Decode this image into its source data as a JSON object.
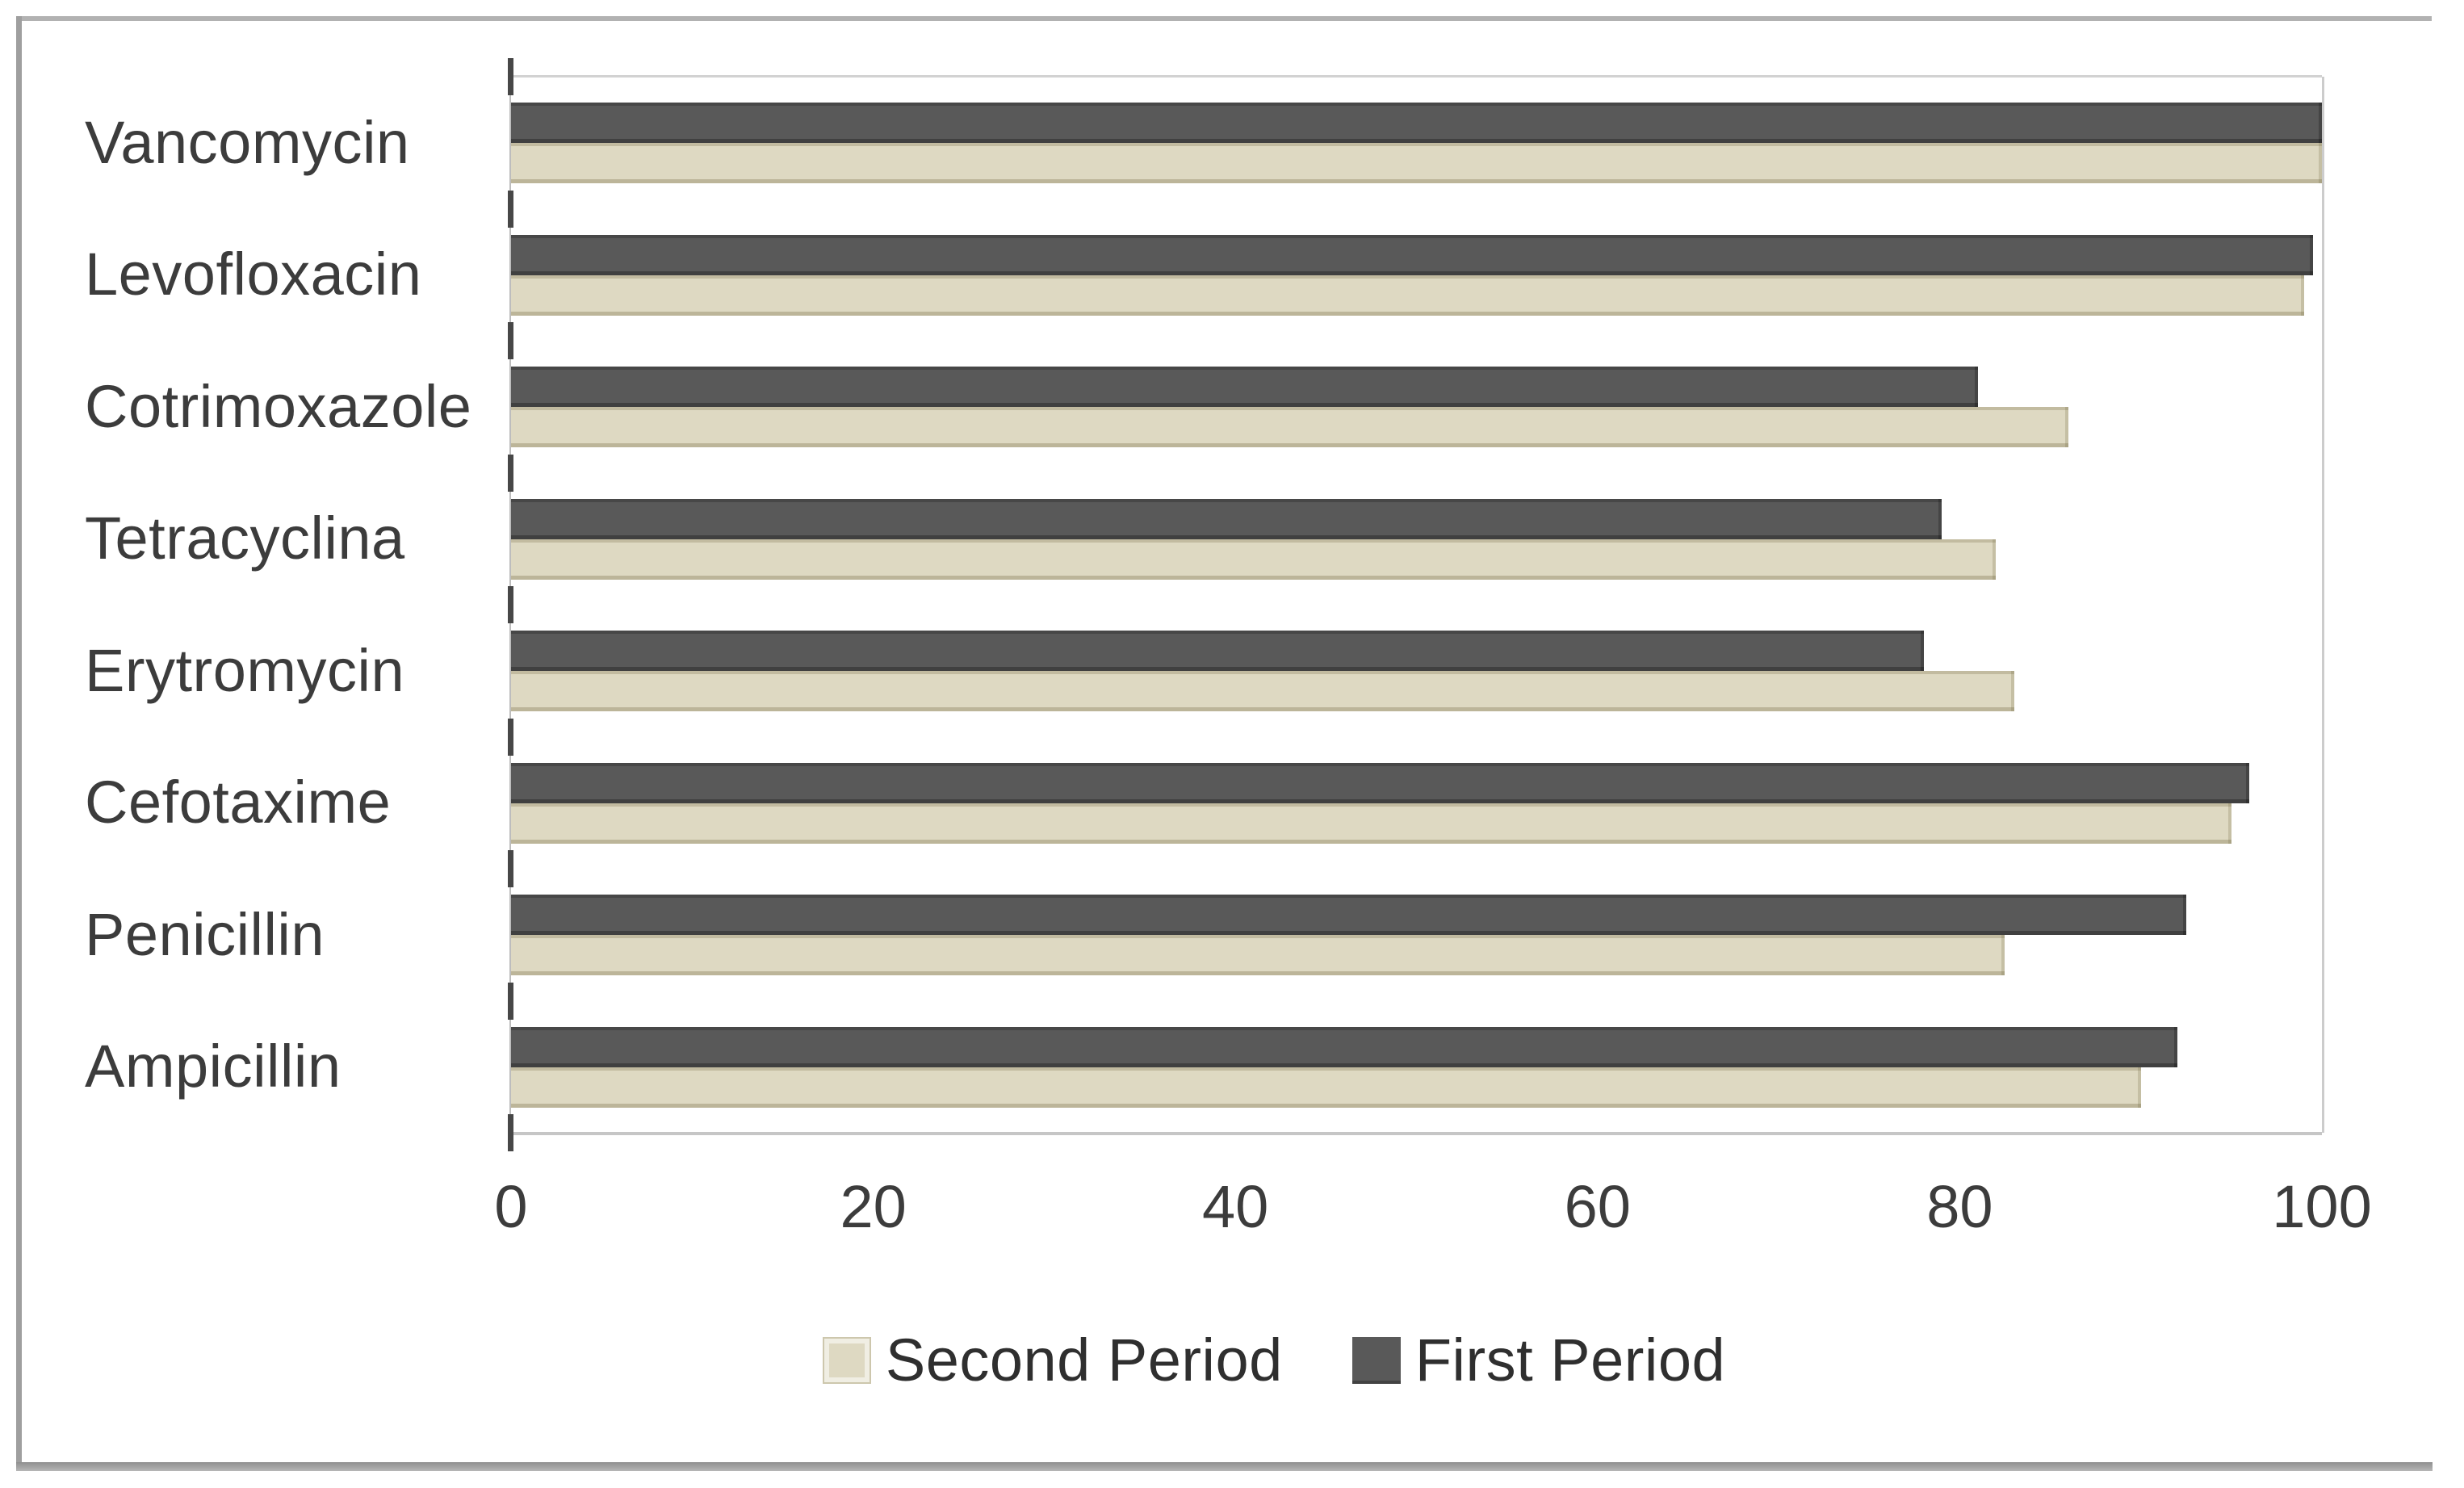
{
  "chart_data": {
    "type": "bar",
    "orientation": "horizontal",
    "title": "",
    "xlabel": "",
    "ylabel": "",
    "xlim": [
      0,
      100
    ],
    "x_tick_labels": [
      "0",
      "20",
      "40",
      "60",
      "80",
      "100"
    ],
    "x_tick_values": [
      0,
      20,
      40,
      60,
      80,
      100
    ],
    "grid": false,
    "legend_position": "bottom",
    "categories": [
      "Vancomycin",
      "Levofloxacin",
      "Cotrimoxazole",
      "Tetracyclina",
      "Erytromycin",
      "Cefotaxime",
      "Penicillin",
      "Ampicillin"
    ],
    "series": [
      {
        "name": "First Period",
        "color": "#595959",
        "values": [
          100,
          99.5,
          81,
          79,
          78,
          96,
          92.5,
          92
        ]
      },
      {
        "name": "Second Period",
        "color": "#ded9c2",
        "values": [
          100,
          99,
          86,
          82,
          83,
          95,
          82.5,
          90
        ]
      }
    ]
  },
  "legend": {
    "items": [
      {
        "label": "Second Period",
        "color": "#ded9c2"
      },
      {
        "label": "First Period",
        "color": "#595959"
      }
    ]
  },
  "colors": {
    "first_period": "#595959",
    "second_period": "#ded9c2",
    "axis_line": "#bdbdbd",
    "tick_mark": "#474747",
    "frame": "#9f9f9f",
    "text": "#3c3c3c",
    "background": "#ffffff"
  }
}
